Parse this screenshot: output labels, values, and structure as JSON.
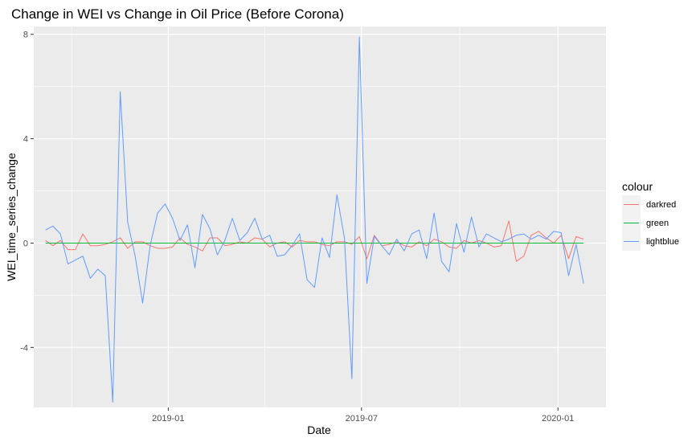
{
  "chart_data": {
    "type": "line",
    "title": "Change in WEI vs Change in Oil Price (Before Corona)",
    "xlabel": "Date",
    "ylabel": "WEI_time_series_change",
    "x_start": "2018-09-08",
    "x_step_days": 7,
    "xlim": [
      "2018-08-28",
      "2020-02-15"
    ],
    "ylim": [
      -6.3,
      8.3
    ],
    "x_ticks": [
      {
        "date": "2019-01-01",
        "label": "2019-01"
      },
      {
        "date": "2019-07-01",
        "label": "2019-07"
      },
      {
        "date": "2020-01-01",
        "label": "2020-01"
      }
    ],
    "y_ticks": [
      {
        "value": -4,
        "label": "-4"
      },
      {
        "value": 0,
        "label": "0"
      },
      {
        "value": 4,
        "label": "4"
      },
      {
        "value": 8,
        "label": "8"
      }
    ],
    "grid": true,
    "legend": {
      "title": "colour",
      "position": "right"
    },
    "series": [
      {
        "name": "darkred",
        "color": "#F8766D",
        "values": [
          0.1,
          -0.1,
          0.1,
          -0.25,
          -0.25,
          0.35,
          -0.1,
          -0.1,
          -0.05,
          0.05,
          0.2,
          -0.2,
          0.05,
          0.05,
          -0.1,
          -0.2,
          -0.2,
          -0.15,
          0.2,
          -0.05,
          -0.15,
          -0.3,
          0.2,
          0.2,
          -0.1,
          -0.05,
          0.05,
          0.0,
          0.2,
          0.15,
          -0.15,
          0.0,
          0.05,
          -0.15,
          0.1,
          0.05,
          0.05,
          -0.05,
          -0.1,
          0.05,
          0.05,
          -0.05,
          0.25,
          -0.6,
          0.3,
          -0.1,
          -0.05,
          0.05,
          -0.1,
          -0.15,
          0.05,
          -0.1,
          0.15,
          0.05,
          -0.15,
          -0.2,
          0.1,
          0.0,
          0.1,
          0.0,
          -0.15,
          -0.1,
          0.85,
          -0.7,
          -0.5,
          0.3,
          0.45,
          0.2,
          0.0,
          0.3,
          -0.6,
          0.25,
          0.15
        ]
      },
      {
        "name": "green",
        "color": "#00BA38",
        "values": [
          0.0,
          0.0,
          0.0,
          0.0,
          0.0,
          0.0,
          0.0,
          0.0,
          0.0,
          0.0,
          0.0,
          0.0,
          0.0,
          0.0,
          0.0,
          0.0,
          0.0,
          0.0,
          0.0,
          0.0,
          0.0,
          0.0,
          0.0,
          0.0,
          0.0,
          0.0,
          0.0,
          0.0,
          0.0,
          0.0,
          0.0,
          0.0,
          0.0,
          0.0,
          0.0,
          0.0,
          0.0,
          0.0,
          0.0,
          0.0,
          0.0,
          0.0,
          0.0,
          0.0,
          0.0,
          0.0,
          0.0,
          0.0,
          0.0,
          0.0,
          0.0,
          0.0,
          0.0,
          0.0,
          0.0,
          0.0,
          0.0,
          0.0,
          0.0,
          0.0,
          0.0,
          0.0,
          0.0,
          0.0,
          0.0,
          0.0,
          0.0,
          0.0,
          0.0,
          0.0,
          0.0,
          0.0,
          0.0
        ]
      },
      {
        "name": "lightblue",
        "color": "#619CFF",
        "values": [
          0.5,
          0.65,
          0.35,
          -0.8,
          -0.65,
          -0.5,
          -1.35,
          -1.0,
          -1.25,
          -6.1,
          5.8,
          0.8,
          -0.5,
          -2.3,
          -0.1,
          1.15,
          1.5,
          0.95,
          0.1,
          0.7,
          -0.95,
          1.1,
          0.55,
          -0.45,
          0.1,
          0.95,
          0.1,
          0.4,
          0.95,
          0.15,
          0.3,
          -0.5,
          -0.45,
          -0.1,
          0.35,
          -1.4,
          -1.7,
          0.2,
          -0.55,
          1.85,
          0.2,
          -5.2,
          7.9,
          -1.55,
          0.25,
          -0.1,
          -0.45,
          0.15,
          -0.3,
          0.35,
          0.5,
          -0.6,
          1.15,
          -0.7,
          -1.1,
          0.75,
          -0.35,
          1.0,
          -0.15,
          0.35,
          0.2,
          0.05,
          0.15,
          0.3,
          0.35,
          0.15,
          0.3,
          0.15,
          0.45,
          0.4,
          -1.25,
          -0.05,
          -1.55
        ]
      }
    ]
  }
}
